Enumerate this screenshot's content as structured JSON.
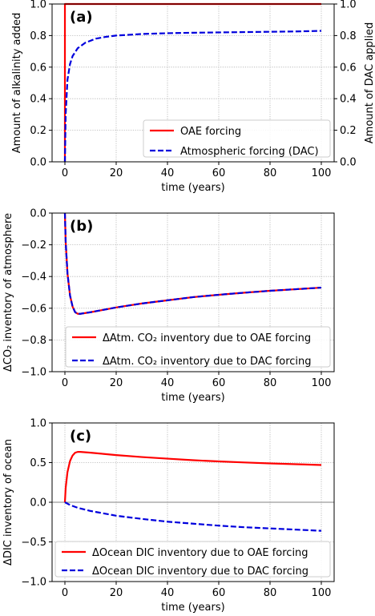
{
  "chart_data": [
    {
      "type": "line",
      "panel_label": "(a)",
      "xlabel": "time (years)",
      "ylabel": "Amount of alkalinity added",
      "ylabel_right": "Amount of DAC applied",
      "xlim": [
        -5,
        105
      ],
      "ylim": [
        0,
        1.0
      ],
      "ylim_right": [
        0,
        1.0
      ],
      "xticks": [
        0,
        20,
        40,
        60,
        80,
        100
      ],
      "yticks": [
        0.0,
        0.2,
        0.4,
        0.6,
        0.8,
        1.0
      ],
      "ytick_labels": [
        "0.0",
        "0.2",
        "0.4",
        "0.6",
        "0.8",
        "1.0"
      ],
      "yticks_right": [
        0.0,
        0.2,
        0.4,
        0.6,
        0.8,
        1.0
      ],
      "ytick_labels_right": [
        "0.0",
        "0.2",
        "0.4",
        "0.6",
        "0.8",
        "1.0"
      ],
      "grid": true,
      "legend_position": "lower-right",
      "series": [
        {
          "name": "OAE forcing",
          "color": "#ff0000",
          "style": "solid",
          "axis": "left",
          "x": [
            0,
            0.01,
            0.5,
            100
          ],
          "y": [
            0,
            1.0,
            1.0,
            1.0
          ]
        },
        {
          "name": "Atmospheric forcing (DAC)",
          "color": "#0000dd",
          "style": "dashed",
          "axis": "right",
          "x": [
            0,
            0.3,
            1,
            2,
            3,
            5,
            8,
            12,
            16,
            20,
            30,
            40,
            50,
            60,
            70,
            80,
            90,
            100
          ],
          "y": [
            0,
            0.3,
            0.52,
            0.62,
            0.67,
            0.72,
            0.755,
            0.78,
            0.792,
            0.8,
            0.81,
            0.815,
            0.818,
            0.82,
            0.822,
            0.824,
            0.826,
            0.83
          ]
        }
      ]
    },
    {
      "type": "line",
      "panel_label": "(b)",
      "xlabel": "time (years)",
      "ylabel": "ΔCO₂ inventory of atmosphere",
      "xlim": [
        -5,
        105
      ],
      "ylim": [
        -1.0,
        0
      ],
      "xticks": [
        0,
        20,
        40,
        60,
        80,
        100
      ],
      "yticks": [
        -1.0,
        -0.8,
        -0.6,
        -0.4,
        -0.2,
        0.0
      ],
      "ytick_labels": [
        "−1.0",
        "−0.8",
        "−0.6",
        "−0.4",
        "−0.2",
        "0.0"
      ],
      "grid": true,
      "legend_position": "lower-right",
      "series": [
        {
          "name": "ΔAtm. CO₂ inventory due to OAE forcing",
          "color": "#ff0000",
          "style": "solid",
          "x": [
            0,
            0.3,
            1,
            2,
            3,
            4,
            5,
            6,
            8,
            10,
            15,
            20,
            30,
            40,
            50,
            60,
            70,
            80,
            90,
            100
          ],
          "y": [
            0,
            -0.18,
            -0.38,
            -0.52,
            -0.59,
            -0.625,
            -0.635,
            -0.635,
            -0.63,
            -0.625,
            -0.61,
            -0.595,
            -0.57,
            -0.55,
            -0.53,
            -0.515,
            -0.502,
            -0.49,
            -0.48,
            -0.47
          ]
        },
        {
          "name": "ΔAtm. CO₂ inventory due to DAC forcing",
          "color": "#0000dd",
          "style": "dashed",
          "x": [
            0,
            0.3,
            1,
            2,
            3,
            4,
            5,
            6,
            8,
            10,
            15,
            20,
            30,
            40,
            50,
            60,
            70,
            80,
            90,
            100
          ],
          "y": [
            0,
            -0.18,
            -0.38,
            -0.52,
            -0.59,
            -0.625,
            -0.635,
            -0.635,
            -0.63,
            -0.625,
            -0.61,
            -0.595,
            -0.57,
            -0.55,
            -0.53,
            -0.515,
            -0.502,
            -0.49,
            -0.48,
            -0.47
          ]
        }
      ]
    },
    {
      "type": "line",
      "panel_label": "(c)",
      "xlabel": "time (years)",
      "ylabel": "ΔDIC inventory of ocean",
      "xlim": [
        -5,
        105
      ],
      "ylim": [
        -1.0,
        1.0
      ],
      "xticks": [
        0,
        20,
        40,
        60,
        80,
        100
      ],
      "yticks": [
        -1.0,
        -0.5,
        0.0,
        0.5,
        1.0
      ],
      "ytick_labels": [
        "−1.0",
        "−0.5",
        "0.0",
        "0.5",
        "1.0"
      ],
      "grid": true,
      "zero_line": true,
      "legend_position": "lower-right",
      "series": [
        {
          "name": "ΔOcean DIC inventory due to OAE forcing",
          "color": "#ff0000",
          "style": "solid",
          "x": [
            0,
            0.3,
            1,
            2,
            3,
            4,
            5,
            6,
            8,
            10,
            15,
            20,
            30,
            40,
            50,
            60,
            70,
            80,
            90,
            100
          ],
          "y": [
            0,
            0.18,
            0.38,
            0.52,
            0.59,
            0.625,
            0.635,
            0.635,
            0.63,
            0.625,
            0.61,
            0.595,
            0.57,
            0.55,
            0.53,
            0.515,
            0.502,
            0.49,
            0.48,
            0.47
          ]
        },
        {
          "name": "ΔOcean DIC inventory due to DAC forcing",
          "color": "#0000dd",
          "style": "dashed",
          "x": [
            0,
            2,
            5,
            10,
            20,
            30,
            40,
            50,
            60,
            70,
            80,
            90,
            100
          ],
          "y": [
            0,
            -0.035,
            -0.07,
            -0.11,
            -0.17,
            -0.21,
            -0.245,
            -0.27,
            -0.295,
            -0.315,
            -0.33,
            -0.345,
            -0.36
          ]
        }
      ]
    }
  ]
}
